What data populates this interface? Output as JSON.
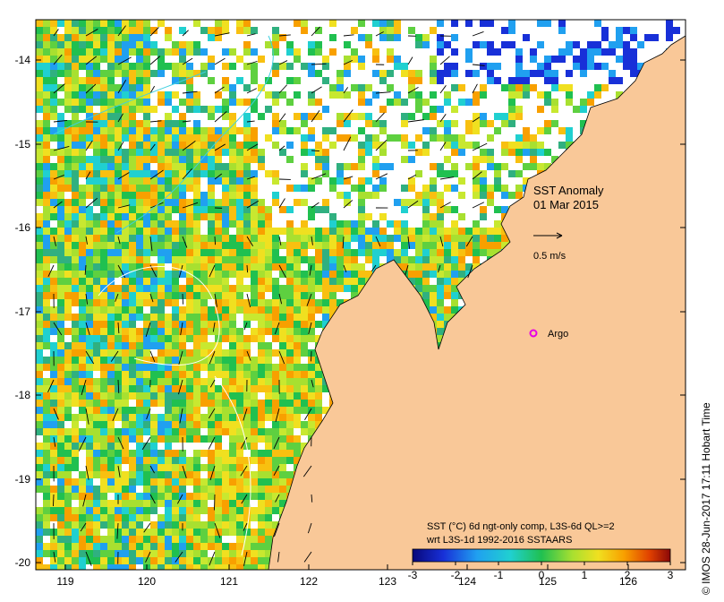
{
  "map": {
    "x_ticks": [
      "119",
      "120",
      "121",
      "122",
      "123",
      "124",
      "125",
      "126"
    ],
    "y_ticks": [
      "-14",
      "-15",
      "-16",
      "-17",
      "-18",
      "-19",
      "-20"
    ],
    "title_line1": "SST Anomaly",
    "title_line2": "01 Mar 2015",
    "vector_scale_label": "0.5 m/s",
    "argo_label": "Argo",
    "caption_line1": "SST (°C) 6d ngt-only comp, L3S-6d QL>=2",
    "caption_line2": "wrt L3S-1d 1992-2016 SSTAARS",
    "colorbar_ticks": [
      "-3",
      "-2",
      "-1",
      "0",
      "1",
      "2",
      "3"
    ],
    "credit": "© IMOS 28-Jun-2017 17:11 Hobart Time",
    "colors": {
      "land": "#f9c898",
      "argo": "#e600e6",
      "ocean_missing": "#ffffff"
    }
  }
}
